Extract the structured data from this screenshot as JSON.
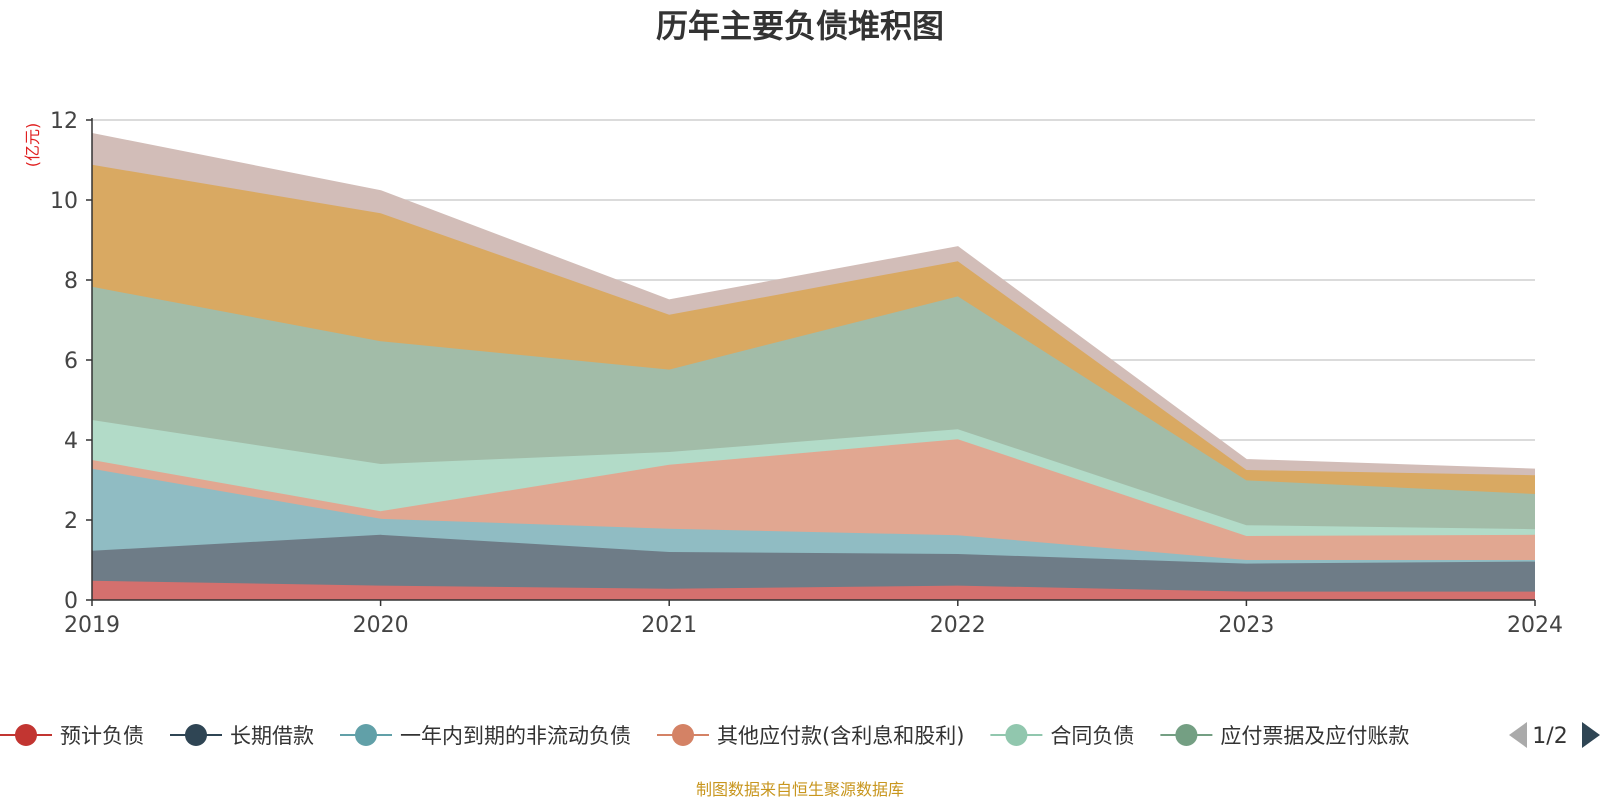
{
  "chart_data": {
    "type": "area",
    "stacked": true,
    "title": "历年主要负债堆积图",
    "unit_label": "(亿元)",
    "x": [
      "2019",
      "2020",
      "2021",
      "2022",
      "2023",
      "2024"
    ],
    "ylim": [
      0,
      12
    ],
    "yticks": [
      0,
      2,
      4,
      6,
      8,
      10,
      12
    ],
    "grid": true,
    "legend_position": "bottom",
    "legend_page": "1/2",
    "series": [
      {
        "name": "预计负债",
        "color": "#c23531",
        "fill": "#d4706e",
        "values": [
          0.48,
          0.36,
          0.28,
          0.36,
          0.21,
          0.21
        ]
      },
      {
        "name": "长期借款",
        "color": "#2f4554",
        "fill": "#6e7c87",
        "values": [
          0.75,
          1.27,
          0.92,
          0.79,
          0.7,
          0.75
        ]
      },
      {
        "name": "一年内到期的非流动负债",
        "color": "#61a0a8",
        "fill": "#90bcc3",
        "values": [
          2.05,
          0.4,
          0.58,
          0.47,
          0.09,
          0.04
        ]
      },
      {
        "name": "其他应付款(含利息和股利)",
        "color": "#d48265",
        "fill": "#e1a791",
        "values": [
          0.22,
          0.19,
          1.6,
          2.4,
          0.6,
          0.63
        ]
      },
      {
        "name": "合同负债",
        "color": "#91c7ae",
        "fill": "#b2dbc8",
        "values": [
          1.0,
          1.18,
          0.32,
          0.25,
          0.27,
          0.14
        ]
      },
      {
        "name": "应付票据及应付账款",
        "color": "#749f83",
        "fill": "#a2bca8",
        "values": [
          3.33,
          3.07,
          2.06,
          3.32,
          1.12,
          0.88
        ]
      },
      {
        "name": "",
        "color": "#ca8622",
        "fill": "#d9a962",
        "values": [
          3.05,
          3.2,
          1.37,
          0.88,
          0.26,
          0.47
        ]
      },
      {
        "name": "",
        "color": "#bda29a",
        "fill": "#d2bdb8",
        "values": [
          0.77,
          0.55,
          0.36,
          0.35,
          0.25,
          0.14
        ]
      }
    ]
  },
  "footer": {
    "source_note": "制图数据来自恒生聚源数据库"
  }
}
